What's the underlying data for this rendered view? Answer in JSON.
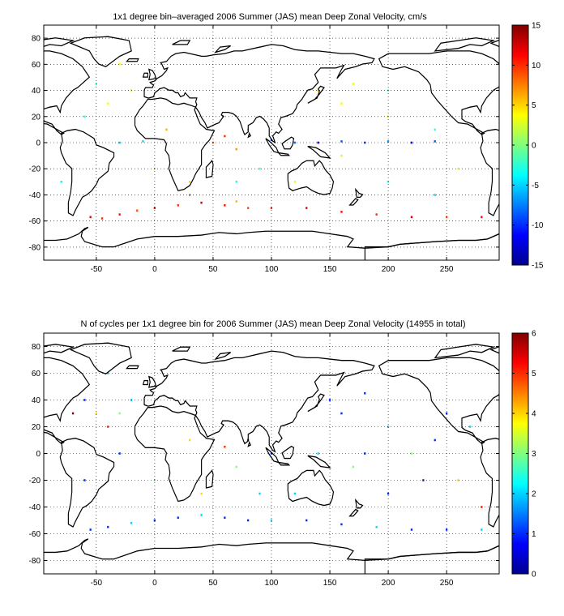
{
  "chart_data": [
    {
      "type": "heatmap",
      "title": "1x1 degree bin–averaged 2006 Summer (JAS) mean Deep Zonal Velocity, cm/s",
      "xlabel": "",
      "ylabel": "",
      "xlim": [
        -95,
        295
      ],
      "ylim": [
        -90,
        90
      ],
      "x_ticks": [
        -50,
        0,
        50,
        100,
        150,
        200,
        250
      ],
      "y_ticks": [
        80,
        60,
        40,
        20,
        0,
        -20,
        -40,
        -60,
        -80
      ],
      "grid": true,
      "colorbar": {
        "range": [
          -15,
          15
        ],
        "ticks": [
          15,
          10,
          5,
          0,
          -5,
          -10,
          -15
        ],
        "colormap": "jet"
      },
      "bins": [
        [
          -55,
          -57,
          12
        ],
        [
          -45,
          -58,
          10
        ],
        [
          -30,
          -55,
          11
        ],
        [
          -15,
          -52,
          9
        ],
        [
          0,
          -50,
          12
        ],
        [
          20,
          -48,
          10
        ],
        [
          40,
          -46,
          13
        ],
        [
          60,
          -48,
          11
        ],
        [
          80,
          -50,
          9
        ],
        [
          100,
          -50,
          10
        ],
        [
          130,
          -50,
          12
        ],
        [
          160,
          -53,
          11
        ],
        [
          190,
          -55,
          10
        ],
        [
          220,
          -57,
          12
        ],
        [
          250,
          -57,
          9
        ],
        [
          280,
          -57,
          11
        ],
        [
          30,
          -40,
          8
        ],
        [
          70,
          -45,
          6
        ],
        [
          100,
          2,
          -10
        ],
        [
          120,
          0,
          -8
        ],
        [
          140,
          0,
          -12
        ],
        [
          160,
          1,
          -9
        ],
        [
          180,
          0,
          -10
        ],
        [
          200,
          1,
          -7
        ],
        [
          220,
          0,
          -11
        ],
        [
          240,
          1,
          -9
        ],
        [
          -30,
          0,
          -6
        ],
        [
          -10,
          1,
          -5
        ],
        [
          50,
          0,
          8
        ],
        [
          60,
          5,
          10
        ],
        [
          70,
          -5,
          7
        ],
        [
          80,
          10,
          6
        ],
        [
          30,
          -30,
          5
        ],
        [
          10,
          10,
          6
        ],
        [
          -40,
          30,
          3
        ],
        [
          -20,
          40,
          2
        ],
        [
          -60,
          20,
          -3
        ],
        [
          160,
          30,
          4
        ],
        [
          200,
          20,
          2
        ],
        [
          240,
          10,
          -2
        ],
        [
          260,
          -20,
          3
        ],
        [
          -80,
          -30,
          -4
        ],
        [
          0,
          -20,
          1
        ],
        [
          90,
          -20,
          -2
        ],
        [
          120,
          -30,
          3
        ],
        [
          200,
          -30,
          -3
        ],
        [
          160,
          -10,
          2
        ],
        [
          240,
          -40,
          -5
        ],
        [
          -30,
          60,
          4
        ],
        [
          -50,
          45,
          -2
        ],
        [
          170,
          45,
          3
        ],
        [
          200,
          40,
          -1
        ],
        [
          140,
          40,
          5
        ],
        [
          70,
          -30,
          -3
        ]
      ]
    },
    {
      "type": "heatmap",
      "title": "N of cycles per 1x1 degree bin for 2006 Summer (JAS) mean Deep Zonal Velocity (14955 in total)",
      "xlabel": "",
      "ylabel": "",
      "xlim": [
        -95,
        295
      ],
      "ylim": [
        -90,
        90
      ],
      "x_ticks": [
        -50,
        0,
        50,
        100,
        150,
        200,
        250
      ],
      "y_ticks": [
        80,
        60,
        40,
        20,
        0,
        -20,
        -40,
        -60,
        -80
      ],
      "grid": true,
      "colorbar": {
        "range": [
          0,
          6
        ],
        "ticks": [
          6,
          5,
          4,
          3,
          2,
          1,
          0
        ],
        "colormap": "jet"
      },
      "bins": [
        [
          -55,
          -57,
          1
        ],
        [
          -40,
          -55,
          1
        ],
        [
          -20,
          -52,
          2
        ],
        [
          0,
          -50,
          1
        ],
        [
          20,
          -48,
          1
        ],
        [
          40,
          -46,
          2
        ],
        [
          60,
          -48,
          1
        ],
        [
          80,
          -50,
          1
        ],
        [
          100,
          -50,
          2
        ],
        [
          130,
          -50,
          1
        ],
        [
          160,
          -53,
          1
        ],
        [
          190,
          -55,
          2
        ],
        [
          220,
          -57,
          1
        ],
        [
          250,
          -57,
          1
        ],
        [
          280,
          -57,
          2
        ],
        [
          -50,
          30,
          4
        ],
        [
          -40,
          20,
          5
        ],
        [
          -30,
          30,
          3
        ],
        [
          -20,
          40,
          2
        ],
        [
          -60,
          40,
          1
        ],
        [
          -70,
          30,
          6
        ],
        [
          100,
          0,
          1
        ],
        [
          140,
          0,
          2
        ],
        [
          180,
          0,
          1
        ],
        [
          220,
          0,
          3
        ],
        [
          40,
          -30,
          4
        ],
        [
          60,
          5,
          5
        ],
        [
          80,
          10,
          6
        ],
        [
          70,
          -10,
          3
        ],
        [
          160,
          30,
          1
        ],
        [
          200,
          20,
          2
        ],
        [
          240,
          10,
          1
        ],
        [
          260,
          -20,
          4
        ],
        [
          200,
          -30,
          1
        ],
        [
          120,
          -30,
          2
        ],
        [
          -30,
          0,
          1
        ],
        [
          0,
          -20,
          3
        ],
        [
          280,
          -40,
          5
        ],
        [
          270,
          20,
          2
        ],
        [
          150,
          40,
          1
        ],
        [
          180,
          45,
          1
        ],
        [
          -40,
          60,
          2
        ],
        [
          -60,
          -20,
          1
        ],
        [
          90,
          -30,
          2
        ],
        [
          30,
          10,
          4
        ],
        [
          230,
          -20,
          1
        ],
        [
          170,
          -10,
          3
        ],
        [
          250,
          30,
          1
        ]
      ]
    }
  ]
}
